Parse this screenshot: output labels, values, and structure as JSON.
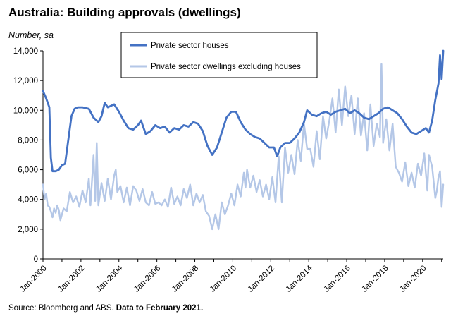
{
  "title": "Australia: Building approvals (dwellings)",
  "units_label": "Number, sa",
  "source_text": "Source: Bloomberg and ABS.",
  "source_bold": "Data to February 2021.",
  "chart_data": {
    "type": "line",
    "title": "Australia: Building approvals (dwellings)",
    "ylabel": "Number, sa",
    "xlabel": "",
    "ylim": [
      0,
      14000
    ],
    "yticks": [
      0,
      2000,
      4000,
      6000,
      8000,
      10000,
      12000,
      14000
    ],
    "ytick_labels": [
      "0",
      "2,000",
      "4,000",
      "6,000",
      "8,000",
      "10,000",
      "12,000",
      "14,000"
    ],
    "xlim": [
      "2000-01",
      "2021-02"
    ],
    "xtick_labels": [
      "Jan-2000",
      "Jan-2002",
      "Jan-2004",
      "Jan-2006",
      "Jan-2008",
      "Jan-2010",
      "Jan-2012",
      "Jan-2014",
      "Jan-2016",
      "Jan-2018",
      "Jan-2020"
    ],
    "grid": false,
    "legend_position": "top-center",
    "series": [
      {
        "name": "Private sector houses",
        "color": "#4472c4",
        "points": [
          [
            "2000-01",
            11300
          ],
          [
            "2000-03",
            10800
          ],
          [
            "2000-05",
            10200
          ],
          [
            "2000-06",
            6800
          ],
          [
            "2000-07",
            5900
          ],
          [
            "2000-09",
            5900
          ],
          [
            "2000-11",
            6000
          ],
          [
            "2001-01",
            6300
          ],
          [
            "2001-03",
            6400
          ],
          [
            "2001-05",
            8000
          ],
          [
            "2001-07",
            9600
          ],
          [
            "2001-09",
            10100
          ],
          [
            "2001-11",
            10200
          ],
          [
            "2002-02",
            10200
          ],
          [
            "2002-06",
            10100
          ],
          [
            "2002-09",
            9500
          ],
          [
            "2002-12",
            9200
          ],
          [
            "2003-02",
            9600
          ],
          [
            "2003-04",
            10500
          ],
          [
            "2003-06",
            10200
          ],
          [
            "2003-08",
            10300
          ],
          [
            "2003-10",
            10400
          ],
          [
            "2004-01",
            9900
          ],
          [
            "2004-04",
            9300
          ],
          [
            "2004-07",
            8800
          ],
          [
            "2004-10",
            8700
          ],
          [
            "2005-01",
            9000
          ],
          [
            "2005-03",
            9300
          ],
          [
            "2005-06",
            8400
          ],
          [
            "2005-09",
            8600
          ],
          [
            "2005-12",
            9000
          ],
          [
            "2006-03",
            8800
          ],
          [
            "2006-06",
            8900
          ],
          [
            "2006-09",
            8500
          ],
          [
            "2006-12",
            8800
          ],
          [
            "2007-03",
            8700
          ],
          [
            "2007-06",
            9000
          ],
          [
            "2007-09",
            8900
          ],
          [
            "2007-12",
            9200
          ],
          [
            "2008-03",
            9100
          ],
          [
            "2008-06",
            8600
          ],
          [
            "2008-09",
            7600
          ],
          [
            "2008-12",
            7000
          ],
          [
            "2009-03",
            7500
          ],
          [
            "2009-06",
            8500
          ],
          [
            "2009-09",
            9500
          ],
          [
            "2009-12",
            9900
          ],
          [
            "2010-03",
            9900
          ],
          [
            "2010-06",
            9200
          ],
          [
            "2010-09",
            8700
          ],
          [
            "2010-12",
            8400
          ],
          [
            "2011-03",
            8200
          ],
          [
            "2011-06",
            8100
          ],
          [
            "2011-09",
            7800
          ],
          [
            "2011-12",
            7500
          ],
          [
            "2012-03",
            7500
          ],
          [
            "2012-05",
            6900
          ],
          [
            "2012-07",
            7500
          ],
          [
            "2012-10",
            7800
          ],
          [
            "2013-01",
            7800
          ],
          [
            "2013-04",
            8100
          ],
          [
            "2013-07",
            8500
          ],
          [
            "2013-10",
            9200
          ],
          [
            "2013-12",
            10000
          ],
          [
            "2014-03",
            9700
          ],
          [
            "2014-06",
            9600
          ],
          [
            "2014-09",
            9800
          ],
          [
            "2014-12",
            9900
          ],
          [
            "2015-03",
            9700
          ],
          [
            "2015-06",
            9900
          ],
          [
            "2015-09",
            10000
          ],
          [
            "2015-12",
            10100
          ],
          [
            "2016-03",
            9800
          ],
          [
            "2016-06",
            10000
          ],
          [
            "2016-09",
            9800
          ],
          [
            "2016-12",
            9500
          ],
          [
            "2017-03",
            9400
          ],
          [
            "2017-06",
            9600
          ],
          [
            "2017-09",
            9800
          ],
          [
            "2017-12",
            10100
          ],
          [
            "2018-03",
            10200
          ],
          [
            "2018-06",
            10000
          ],
          [
            "2018-09",
            9800
          ],
          [
            "2018-12",
            9400
          ],
          [
            "2019-03",
            8900
          ],
          [
            "2019-06",
            8500
          ],
          [
            "2019-09",
            8400
          ],
          [
            "2019-12",
            8600
          ],
          [
            "2020-03",
            8800
          ],
          [
            "2020-05",
            8500
          ],
          [
            "2020-07",
            9300
          ],
          [
            "2020-09",
            10700
          ],
          [
            "2020-11",
            11800
          ],
          [
            "2020-12",
            13700
          ],
          [
            "2021-01",
            12100
          ],
          [
            "2021-02",
            14000
          ]
        ]
      },
      {
        "name": "Private sector dwellings excluding houses",
        "color": "#b4c7e7",
        "points": [
          [
            "2000-01",
            5000
          ],
          [
            "2000-02",
            4000
          ],
          [
            "2000-03",
            4400
          ],
          [
            "2000-04",
            3600
          ],
          [
            "2000-05",
            3500
          ],
          [
            "2000-06",
            3200
          ],
          [
            "2000-07",
            2800
          ],
          [
            "2000-08",
            3400
          ],
          [
            "2000-09",
            3100
          ],
          [
            "2000-10",
            3600
          ],
          [
            "2000-11",
            3300
          ],
          [
            "2000-12",
            2600
          ],
          [
            "2001-02",
            3400
          ],
          [
            "2001-04",
            3200
          ],
          [
            "2001-06",
            4500
          ],
          [
            "2001-08",
            3800
          ],
          [
            "2001-10",
            4200
          ],
          [
            "2001-12",
            3500
          ],
          [
            "2002-02",
            4600
          ],
          [
            "2002-04",
            3800
          ],
          [
            "2002-06",
            5400
          ],
          [
            "2002-07",
            3600
          ],
          [
            "2002-09",
            7000
          ],
          [
            "2002-10",
            3900
          ],
          [
            "2002-11",
            7800
          ],
          [
            "2002-12",
            3600
          ],
          [
            "2003-02",
            5100
          ],
          [
            "2003-04",
            3900
          ],
          [
            "2003-06",
            5400
          ],
          [
            "2003-08",
            4000
          ],
          [
            "2003-10",
            5600
          ],
          [
            "2003-11",
            6000
          ],
          [
            "2003-12",
            4500
          ],
          [
            "2004-02",
            4900
          ],
          [
            "2004-04",
            3800
          ],
          [
            "2004-06",
            4800
          ],
          [
            "2004-08",
            3600
          ],
          [
            "2004-10",
            4900
          ],
          [
            "2004-12",
            4600
          ],
          [
            "2005-02",
            3900
          ],
          [
            "2005-04",
            4700
          ],
          [
            "2005-06",
            3800
          ],
          [
            "2005-08",
            3600
          ],
          [
            "2005-10",
            4500
          ],
          [
            "2005-12",
            3700
          ],
          [
            "2006-02",
            3800
          ],
          [
            "2006-04",
            3600
          ],
          [
            "2006-06",
            4000
          ],
          [
            "2006-08",
            3500
          ],
          [
            "2006-10",
            4800
          ],
          [
            "2006-12",
            3700
          ],
          [
            "2007-02",
            4200
          ],
          [
            "2007-04",
            3600
          ],
          [
            "2007-06",
            4700
          ],
          [
            "2007-08",
            4100
          ],
          [
            "2007-10",
            5000
          ],
          [
            "2007-12",
            3600
          ],
          [
            "2008-02",
            4400
          ],
          [
            "2008-04",
            3800
          ],
          [
            "2008-06",
            4300
          ],
          [
            "2008-08",
            3200
          ],
          [
            "2008-10",
            2900
          ],
          [
            "2008-12",
            2000
          ],
          [
            "2009-02",
            3000
          ],
          [
            "2009-04",
            2000
          ],
          [
            "2009-06",
            3800
          ],
          [
            "2009-08",
            3000
          ],
          [
            "2009-10",
            3600
          ],
          [
            "2009-12",
            4400
          ],
          [
            "2010-02",
            3600
          ],
          [
            "2010-04",
            5000
          ],
          [
            "2010-06",
            4200
          ],
          [
            "2010-08",
            5800
          ],
          [
            "2010-09",
            4800
          ],
          [
            "2010-10",
            6000
          ],
          [
            "2010-12",
            4800
          ],
          [
            "2011-02",
            5600
          ],
          [
            "2011-04",
            4500
          ],
          [
            "2011-06",
            5300
          ],
          [
            "2011-08",
            4200
          ],
          [
            "2011-10",
            5000
          ],
          [
            "2011-12",
            4000
          ],
          [
            "2012-02",
            5500
          ],
          [
            "2012-04",
            3800
          ],
          [
            "2012-06",
            6900
          ],
          [
            "2012-08",
            3800
          ],
          [
            "2012-10",
            7500
          ],
          [
            "2012-12",
            5800
          ],
          [
            "2013-02",
            7000
          ],
          [
            "2013-04",
            5700
          ],
          [
            "2013-06",
            8000
          ],
          [
            "2013-08",
            6600
          ],
          [
            "2013-10",
            9100
          ],
          [
            "2013-12",
            7400
          ],
          [
            "2014-02",
            7400
          ],
          [
            "2014-04",
            6200
          ],
          [
            "2014-06",
            8600
          ],
          [
            "2014-08",
            6700
          ],
          [
            "2014-10",
            9600
          ],
          [
            "2014-12",
            8100
          ],
          [
            "2015-02",
            9300
          ],
          [
            "2015-04",
            10800
          ],
          [
            "2015-06",
            8500
          ],
          [
            "2015-08",
            11400
          ],
          [
            "2015-10",
            9000
          ],
          [
            "2015-12",
            11600
          ],
          [
            "2016-02",
            9600
          ],
          [
            "2016-04",
            11000
          ],
          [
            "2016-06",
            8400
          ],
          [
            "2016-08",
            10800
          ],
          [
            "2016-10",
            8300
          ],
          [
            "2016-12",
            9800
          ],
          [
            "2017-02",
            7300
          ],
          [
            "2017-04",
            10400
          ],
          [
            "2017-06",
            7600
          ],
          [
            "2017-08",
            9100
          ],
          [
            "2017-10",
            8200
          ],
          [
            "2017-11",
            13100
          ],
          [
            "2017-12",
            7800
          ],
          [
            "2018-02",
            9400
          ],
          [
            "2018-04",
            7300
          ],
          [
            "2018-06",
            9100
          ],
          [
            "2018-08",
            6200
          ],
          [
            "2018-10",
            5800
          ],
          [
            "2018-12",
            5200
          ],
          [
            "2019-02",
            6500
          ],
          [
            "2019-04",
            4900
          ],
          [
            "2019-06",
            5800
          ],
          [
            "2019-08",
            4800
          ],
          [
            "2019-10",
            6400
          ],
          [
            "2019-12",
            5600
          ],
          [
            "2020-02",
            7100
          ],
          [
            "2020-04",
            4600
          ],
          [
            "2020-05",
            7000
          ],
          [
            "2020-07",
            6200
          ],
          [
            "2020-09",
            4100
          ],
          [
            "2020-10",
            4600
          ],
          [
            "2020-11",
            5500
          ],
          [
            "2020-12",
            5900
          ],
          [
            "2021-01",
            3500
          ],
          [
            "2021-02",
            5000
          ]
        ]
      }
    ]
  }
}
